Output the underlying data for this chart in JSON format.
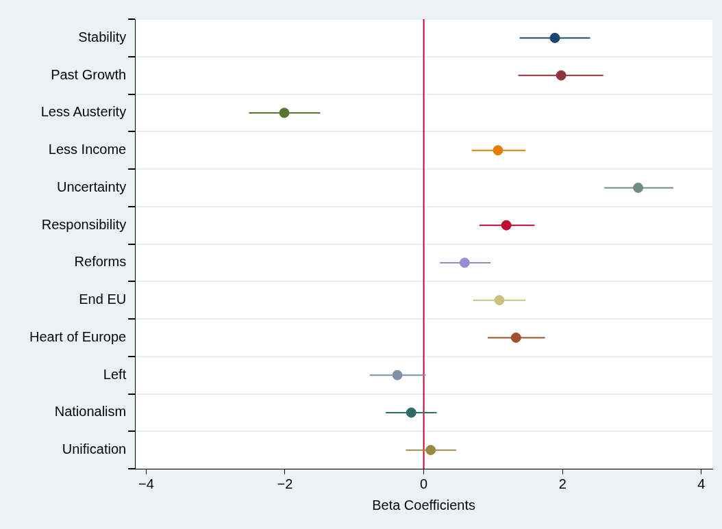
{
  "chart_data": {
    "type": "scatter",
    "orientation": "horizontal",
    "xlabel": "Beta Coefficients",
    "categories": [
      "Stability",
      "Past Growth",
      "Less Austerity",
      "Less Income",
      "Uncertainty",
      "Responsibility",
      "Reforms",
      "End EU",
      "Heart of Europe",
      "Left",
      "Nationalism",
      "Unification"
    ],
    "values": [
      1.89,
      1.98,
      -2.01,
      1.07,
      3.09,
      1.19,
      0.59,
      1.09,
      1.33,
      -0.38,
      -0.18,
      0.1
    ],
    "errors": [
      [
        1.39,
        2.39
      ],
      [
        1.37,
        2.58
      ],
      [
        -2.51,
        -1.5
      ],
      [
        0.7,
        1.46
      ],
      [
        2.61,
        3.59
      ],
      [
        0.81,
        1.59
      ],
      [
        0.24,
        0.96
      ],
      [
        0.72,
        1.46
      ],
      [
        0.93,
        1.74
      ],
      [
        -0.77,
        0.02
      ],
      [
        -0.54,
        0.18
      ],
      [
        -0.25,
        0.46
      ]
    ],
    "colors": [
      "#1a476f",
      "#90353b",
      "#55752f",
      "#e37e00",
      "#6e8e84",
      "#c10534",
      "#938dd2",
      "#cac27e",
      "#a0522d",
      "#7b92a8",
      "#2d6d66",
      "#9c8847"
    ],
    "xlim": [
      -4.16,
      4.16
    ],
    "xticks": [
      -4,
      -2,
      0,
      2,
      4
    ],
    "ref_lines": [
      {
        "axis": "x",
        "value": 0,
        "color": "#c10534"
      }
    ],
    "grid": "y",
    "marker": "circle",
    "legend": false
  }
}
